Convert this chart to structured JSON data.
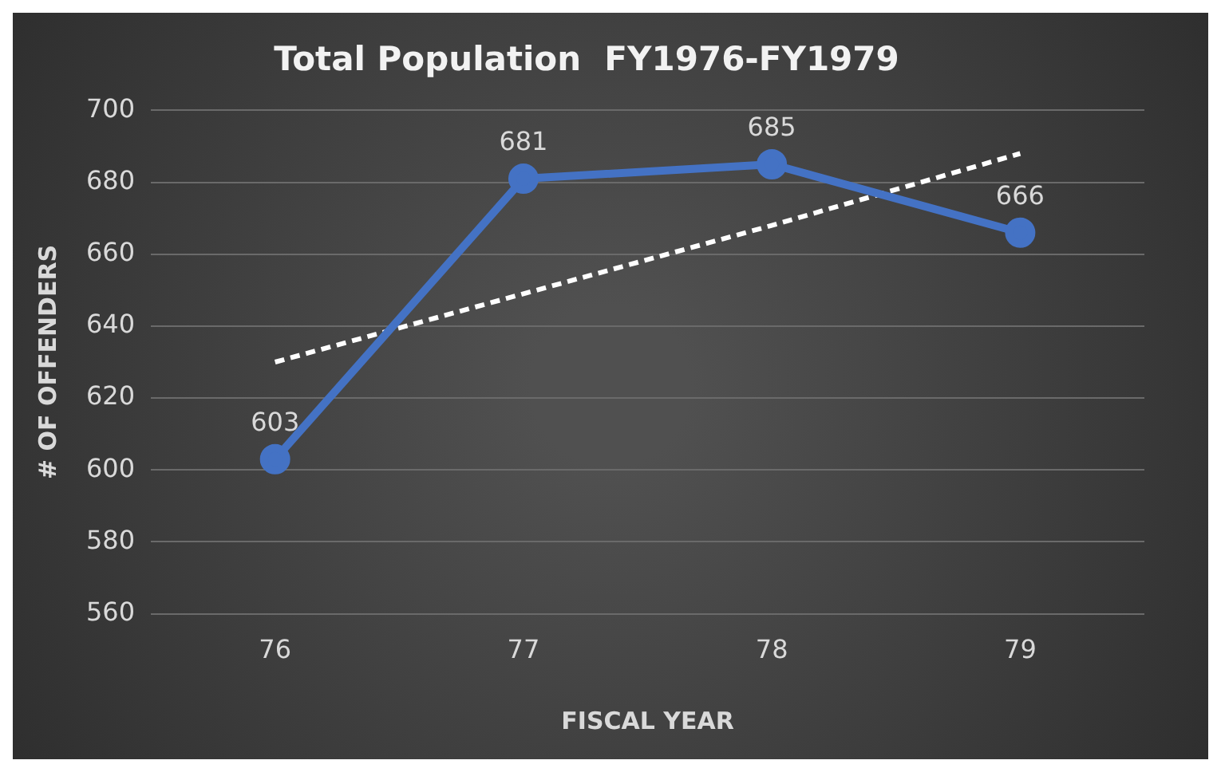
{
  "chart_data": {
    "type": "line",
    "title": "Total Population  FY1976-FY1979",
    "xlabel": "FISCAL YEAR",
    "ylabel": "# OF OFFENDERS",
    "categories": [
      "76",
      "77",
      "78",
      "79"
    ],
    "series": [
      {
        "color": "#4472c4",
        "values": [
          603,
          681,
          685,
          666
        ],
        "value_labels": [
          "603",
          "681",
          "685",
          "666"
        ],
        "marker": "circle",
        "line_style": "solid"
      },
      {
        "color": "#ffffff",
        "values": [
          630,
          649,
          668,
          688
        ],
        "marker": "none",
        "line_style": "dashed"
      }
    ],
    "ylim": [
      560,
      700
    ],
    "yticks": [
      560,
      580,
      600,
      620,
      640,
      660,
      680,
      700
    ],
    "grid": "y",
    "legend": false
  }
}
